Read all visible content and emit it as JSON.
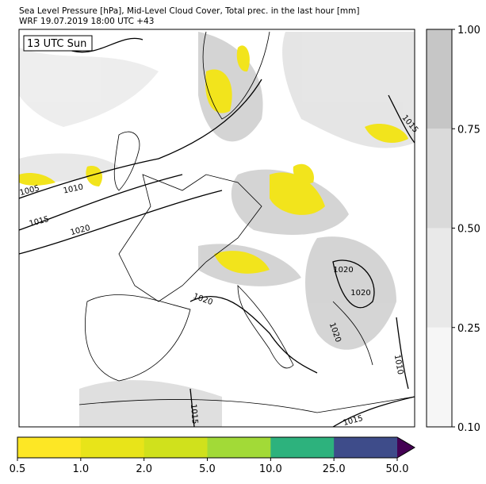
{
  "header": {
    "title_line_1": "Sea Level Pressure [hPa], Mid-Level Cloud Cover, Total prec. in the last hour [mm]",
    "title_line_2": "WRF 19.07.2019 18:00 UTC +43"
  },
  "map": {
    "time_label": "13 UTC Sun",
    "isobar_labels": [
      "1005",
      "1010",
      "1015",
      "1020",
      "1020",
      "1020",
      "1020",
      "1020",
      "1015",
      "1010",
      "1015",
      "1015"
    ]
  },
  "cloud_colorbar": {
    "colors": [
      "#f6f6f6",
      "#e9e9e9",
      "#dadada",
      "#c6c6c6"
    ],
    "ticks": [
      {
        "value": 0.1,
        "label": "0.10"
      },
      {
        "value": 0.25,
        "label": "0.25"
      },
      {
        "value": 0.5,
        "label": "0.50"
      },
      {
        "value": 0.75,
        "label": "0.75"
      },
      {
        "value": 1,
        "label": "1.00"
      }
    ]
  },
  "precip_colorbar": {
    "colors": [
      "#fde725",
      "#e8e419",
      "#d0e11c",
      "#a2da37",
      "#2db27d",
      "#3e4c8a"
    ],
    "extend_color": "#440154",
    "ticks": [
      {
        "value": 0.5,
        "label": "0.5"
      },
      {
        "value": 1,
        "label": "1.0"
      },
      {
        "value": 2,
        "label": "2.0"
      },
      {
        "value": 5,
        "label": "5.0"
      },
      {
        "value": 10,
        "label": "10.0"
      },
      {
        "value": 25,
        "label": "25.0"
      },
      {
        "value": 50,
        "label": "50.0"
      }
    ]
  }
}
